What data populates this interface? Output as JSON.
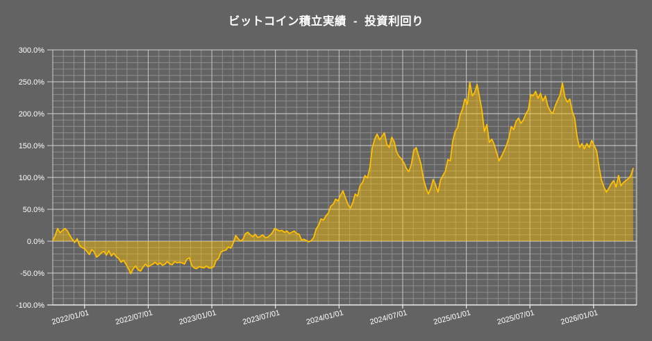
{
  "title": "ビットコイン積立実績  -  投資利回り",
  "colors": {
    "background": "#636363",
    "title_text": "#ffffff",
    "axis_text": "#ffffff",
    "grid_major": "#d6d6d6",
    "grid_minor": "#8d8d8d",
    "grid_vertical_major": "#c9c9c9",
    "grid_vertical_minor": "#8e8e8e",
    "axis_line": "#f0f0f0",
    "series_line": "#ffc000",
    "series_fill": "#ffc000",
    "series_fill_opacity": 0.45
  },
  "chart_data": {
    "type": "area",
    "title": "ビットコイン積立実績  -  投資利回り",
    "series_name": "投資利回り",
    "unit": "percent",
    "baseline": 0,
    "grid": "major+minor",
    "legend": "none",
    "start_date": "2021/10/01",
    "interval_days": 7,
    "ylim": [
      -100,
      300
    ],
    "y_tick_step_major": 50,
    "y_tick_step_minor": 10,
    "y_tick_labels": [
      "300.0%",
      "250.0%",
      "200.0%",
      "150.0%",
      "100.0%",
      "50.0%",
      "0.0%",
      "-50.0%",
      "-100.0%"
    ],
    "x_total_months": 55.07,
    "x_ticks": [
      {
        "label": "2022/01/01",
        "month": 3
      },
      {
        "label": "2022/07/01",
        "month": 9
      },
      {
        "label": "2023/01/01",
        "month": 15
      },
      {
        "label": "2023/07/01",
        "month": 21
      },
      {
        "label": "2024/01/01",
        "month": 27
      },
      {
        "label": "2024/07/01",
        "month": 33
      },
      {
        "label": "2025/01/01",
        "month": 39
      },
      {
        "label": "2025/07/01",
        "month": 45
      },
      {
        "label": "2026/01/01",
        "month": 51
      }
    ],
    "values": [
      1,
      9,
      20,
      13,
      17,
      20,
      16,
      9,
      3,
      -2,
      4,
      -7,
      -10,
      -12,
      -16,
      -21,
      -13,
      -17,
      -25,
      -22,
      -18,
      -16,
      -22,
      -15,
      -23,
      -19,
      -24,
      -27,
      -33,
      -30,
      -36,
      -43,
      -51,
      -43,
      -39,
      -45,
      -47,
      -41,
      -36,
      -40,
      -38,
      -36,
      -33,
      -37,
      -34,
      -38,
      -36,
      -32,
      -36,
      -37,
      -32,
      -34,
      -33,
      -34,
      -36,
      -28,
      -26,
      -38,
      -42,
      -43,
      -40,
      -41,
      -42,
      -39,
      -42,
      -42,
      -40,
      -30,
      -27,
      -17,
      -15,
      -14,
      -9,
      -11,
      -3,
      9,
      4,
      0,
      3,
      12,
      14,
      10,
      7,
      11,
      6,
      7,
      10,
      6,
      6,
      9,
      13,
      20,
      18,
      16,
      17,
      14,
      16,
      12,
      14,
      16,
      12,
      11,
      2,
      3,
      1,
      -1,
      1,
      6,
      19,
      25,
      35,
      33,
      40,
      44,
      55,
      58,
      66,
      63,
      72,
      79,
      68,
      58,
      52,
      60,
      74,
      71,
      87,
      92,
      103,
      99,
      115,
      146,
      160,
      168,
      159,
      164,
      170,
      152,
      147,
      163,
      156,
      140,
      133,
      129,
      123,
      114,
      109,
      120,
      142,
      147,
      134,
      121,
      98,
      84,
      74,
      83,
      97,
      88,
      77,
      96,
      103,
      110,
      128,
      126,
      157,
      172,
      178,
      197,
      207,
      223,
      215,
      249,
      228,
      233,
      246,
      226,
      205,
      172,
      183,
      155,
      160,
      152,
      139,
      126,
      133,
      141,
      150,
      162,
      180,
      175,
      188,
      193,
      185,
      190,
      200,
      206,
      230,
      228,
      235,
      224,
      232,
      220,
      228,
      212,
      204,
      200,
      212,
      221,
      229,
      248,
      226,
      218,
      223,
      204,
      193,
      164,
      147,
      153,
      145,
      153,
      147,
      158,
      150,
      142,
      117,
      96,
      85,
      77,
      83,
      90,
      95,
      85,
      103,
      87,
      92,
      95,
      98,
      103,
      114
    ]
  }
}
